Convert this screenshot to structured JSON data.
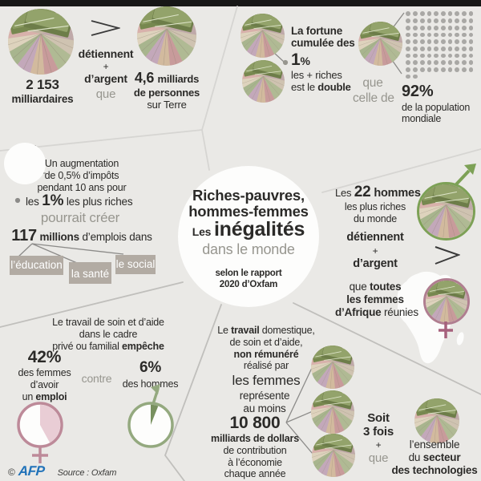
{
  "colors": {
    "background": "#eae9e6",
    "top_bar": "#171716",
    "text_dark": "#2b2a28",
    "text_gray": "#97968f",
    "box_bg": "#b2aba3",
    "dot_gray": "#a9a8a5",
    "male_green": "#7da156",
    "male_fill": "#78905f",
    "female_pink": "#b07e90",
    "female_fill": "#e9cdd5",
    "afp_blue": "#2273b9"
  },
  "icons": {
    "greater_than": ">",
    "money_photo": "fanned-banknotes-photo",
    "male_symbol": "male-arrow",
    "female_symbol": "female-cross"
  },
  "billionaires": {
    "count": "2 153",
    "count_label": "milliardaires",
    "own1": "détiennent",
    "own_plus": "+",
    "own2": "d’argent",
    "own_than": "que",
    "people_value": "4,6",
    "people_unit": "milliards",
    "people_line2": "de personnes",
    "people_line3": "sur Terre"
  },
  "fortune": {
    "intro_line1": "La fortune",
    "intro_line2": "cumulée des",
    "pct": "1",
    "pct_sign": "%",
    "rich_line": "les + riches",
    "double_pre": "est ",
    "double_mid": "le ",
    "double_word": "double",
    "than_line1": "que",
    "than_line2": "celle de",
    "dots_total": 92,
    "pop_pct": "92%",
    "pop_line1": "de la population",
    "pop_line2": "mondiale"
  },
  "tax": {
    "line1": "Un augmentation",
    "line2": "de 0,5% d’impôts",
    "line3": "pendant 10 ans pour",
    "target_pre": "les ",
    "target_pct": "1%",
    "target_post": " les plus riches",
    "could": "pourrait créer",
    "jobs_value": "117",
    "jobs_unit": " millions",
    "jobs_rest": " d’emplois dans",
    "boxes": [
      "l’éducation",
      "la santé",
      "le social"
    ]
  },
  "center": {
    "title_line1": "Riches-pauvres,",
    "title_line2": "hommes-femmes",
    "title_line3_small": "Les ",
    "title_line3_big": "inégalités",
    "subtitle": "dans le monde",
    "source_line1": "selon le rapport",
    "source_line2": "2020 d’Oxfam"
  },
  "men22": {
    "pre": "Les ",
    "value": "22",
    "post": " hommes",
    "line2": "les plus riches",
    "line3": "du monde",
    "own1": "détiennent",
    "own_plus": "+",
    "own2": "d’argent",
    "than_pre": "que ",
    "than_bold1": "toutes",
    "than_bold2": "les femmes",
    "than_bold3": "d’Afrique",
    "than_post": " réunies"
  },
  "care_work": {
    "line1": "Le travail de soin et d’aide",
    "line2": "dans le cadre",
    "line3_pre": "privé ou familial ",
    "line3_bold": "empêche",
    "women_pct": "42%",
    "women_value": 42,
    "women_line1": "des femmes",
    "women_line2": "d’avoir",
    "women_line3_pre": "un ",
    "women_line3_bold": "emploi",
    "versus": "contre",
    "men_pct": "6%",
    "men_value": 6,
    "men_line1": "des hommes"
  },
  "domestic": {
    "line1_pre": "Le ",
    "line1_bold": "travail",
    "line1_post": " domestique,",
    "line2": "de soin et d’aide,",
    "line3": "non rémunéré",
    "line4": "réalisé par",
    "line5": "les femmes",
    "rep_line1": "représente",
    "rep_line2": "au moins",
    "amount": "10 800",
    "amount_unit": "milliards de dollars",
    "amount_line2": "de contribution",
    "amount_line3": "à l’économie",
    "amount_line4": "chaque année"
  },
  "tech": {
    "factor_line1": "Soit",
    "factor_line2": "3 fois",
    "factor_plus": "+",
    "factor_than": "que",
    "line1": "l’ensemble",
    "line2_pre": "du ",
    "line2_bold": "secteur",
    "line3": "des technologies"
  },
  "footer": {
    "copyright": "©",
    "logo": "AFP",
    "source": "Source : Oxfam"
  }
}
